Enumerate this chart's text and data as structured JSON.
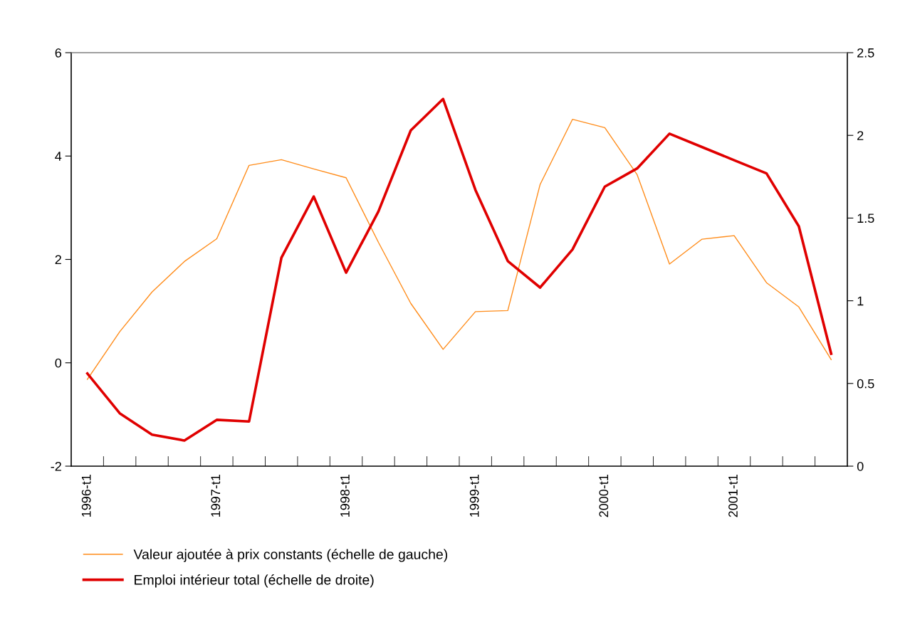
{
  "chart_data": {
    "type": "line",
    "categories": [
      "1996-t1",
      null,
      null,
      null,
      "1997-t1",
      null,
      null,
      null,
      "1998-t1",
      null,
      null,
      null,
      "1999-t1",
      null,
      null,
      null,
      "2000-t1",
      null,
      null,
      null,
      "2001-t1",
      null,
      null,
      null
    ],
    "series": [
      {
        "name": "Valeur ajoutée à prix constants (échelle de gauche)",
        "color": "#ff8c1a",
        "values": [
          -0.32,
          0.6,
          1.37,
          1.96,
          2.4,
          3.82,
          3.93,
          3.75,
          3.58,
          2.33,
          1.15,
          0.26,
          0.99,
          1.01,
          3.45,
          4.71,
          4.55,
          3.64,
          1.91,
          2.39,
          2.46,
          1.55,
          1.08,
          0.06
        ]
      },
      {
        "name": "Emploi intérieur total (échelle de droite)",
        "color": "#e00000",
        "axis": "y2",
        "values": [
          0.56,
          0.32,
          0.19,
          0.155,
          0.28,
          0.27,
          1.26,
          1.63,
          1.17,
          1.54,
          2.03,
          2.22,
          1.67,
          1.24,
          1.08,
          1.31,
          1.69,
          1.8,
          2.01,
          1.93,
          1.85,
          1.77,
          1.45,
          0.68
        ]
      }
    ],
    "ylim": [
      -2,
      6
    ],
    "yticks": [
      -2,
      0,
      2,
      4,
      6
    ],
    "y2lim": [
      0,
      2.5
    ],
    "y2ticks": [
      0,
      0.5,
      1,
      1.5,
      2,
      2.5
    ],
    "legend": "bottom left",
    "grid": false
  }
}
